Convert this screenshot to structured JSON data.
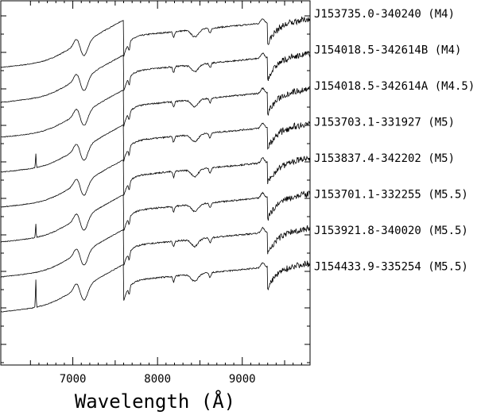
{
  "chart_data": {
    "type": "line",
    "title": "",
    "xlabel": "Wavelength (Å)",
    "ylabel": "",
    "xlim": [
      6150,
      9800
    ],
    "x_ticks": [
      7000,
      8000,
      9000
    ],
    "x_tick_labels": [
      "7000",
      "8000",
      "9000"
    ],
    "grid": false,
    "legend": "none",
    "series": [
      {
        "name": "J153735.0-340240 (M4)"
      },
      {
        "name": "J154018.5-342614B (M4)"
      },
      {
        "name": "J154018.5-342614A (M4.5)"
      },
      {
        "name": "J153703.1-331927 (M5)"
      },
      {
        "name": "J153837.4-342202 (M5)"
      },
      {
        "name": "J153701.1-332255 (M5.5)"
      },
      {
        "name": "J153921.8-340020 (M5.5)"
      },
      {
        "name": "J154433.9-335254 (M5.5)"
      }
    ]
  }
}
